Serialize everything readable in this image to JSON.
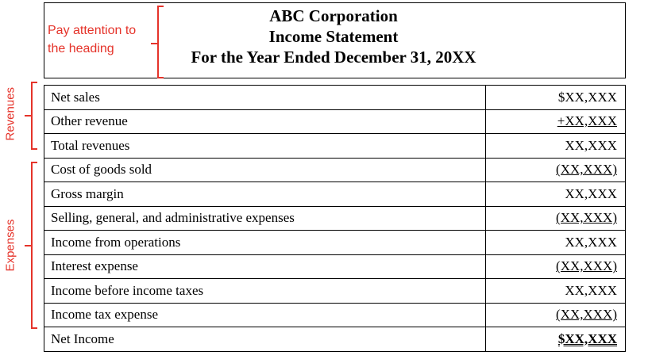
{
  "heading": {
    "company": "ABC Corporation",
    "statement": "Income Statement",
    "period": "For the Year Ended December 31, 20XX"
  },
  "annotations": {
    "heading_note_line1": "Pay attention to",
    "heading_note_line2": "the heading",
    "revenues_label": "Revenues",
    "expenses_label": "Expenses",
    "accent_color": "#e5332a"
  },
  "rows": [
    {
      "label": "Net sales",
      "amount": "$XX,XXX"
    },
    {
      "label": "Other revenue",
      "amount": "+XX,XXX"
    },
    {
      "label": "Total revenues",
      "amount": "XX,XXX"
    },
    {
      "label": "Cost of goods sold",
      "amount": "(XX,XXX)"
    },
    {
      "label": "Gross margin",
      "amount": "XX,XXX"
    },
    {
      "label": "Selling, general, and administrative expenses",
      "amount": "(XX,XXX)"
    },
    {
      "label": "Income from operations",
      "amount": "XX,XXX"
    },
    {
      "label": "Interest expense",
      "amount": "(XX,XXX)"
    },
    {
      "label": "Income before income taxes",
      "amount": "XX,XXX"
    },
    {
      "label": "Income tax expense",
      "amount": "(XX,XXX)"
    },
    {
      "label": "Net Income",
      "amount": "$XX,XXX"
    }
  ]
}
